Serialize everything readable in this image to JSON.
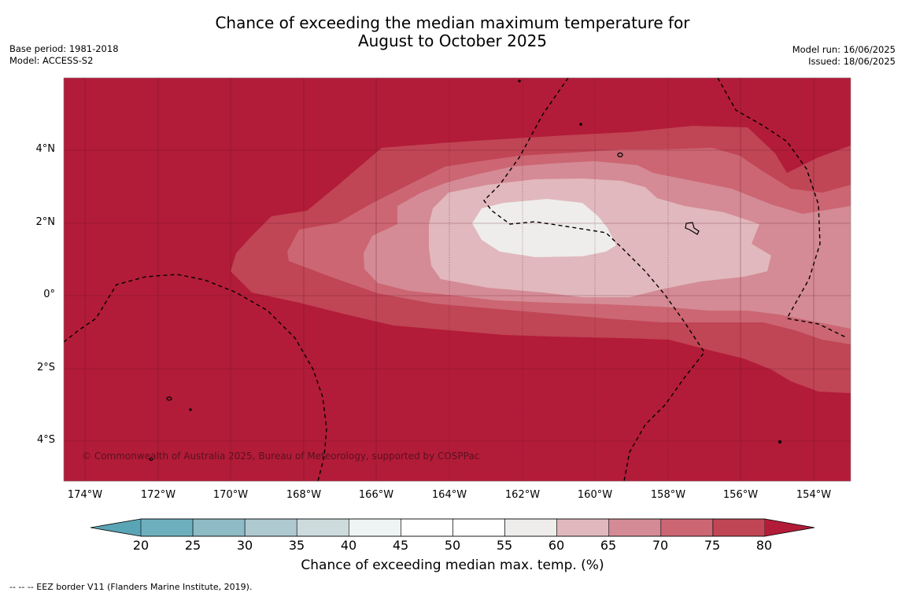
{
  "header": {
    "title_line1": "Chance of exceeding the median maximum temperature for",
    "title_line2": "August to October 2025",
    "base_period": "Base period: 1981-2018",
    "model": "Model: ACCESS-S2",
    "model_run": "Model run: 16/06/2025",
    "issued": "Issued: 18/06/2025"
  },
  "map": {
    "latitude_labels": [
      "4°N",
      "2°N",
      "0°",
      "2°S",
      "4°S"
    ],
    "longitude_labels": [
      "174°W",
      "172°W",
      "170°W",
      "168°W",
      "166°W",
      "164°W",
      "162°W",
      "160°W",
      "158°W",
      "156°W",
      "154°W"
    ],
    "copyright": "© Commonwealth of Australia 2025, Bureau of Meteorology, supported by COSPPac",
    "colors": {
      "background": "#b21c38",
      "band_75_80": "#c04555",
      "band_70_75": "#cc6673",
      "band_65_70": "#d48b95",
      "band_60_65": "#e1b8bd",
      "band_55_60": "#eeedeb",
      "land": "#000000"
    }
  },
  "colorbar": {
    "title": "Chance of exceeding median max. temp. (%)",
    "ticks": [
      "20",
      "25",
      "30",
      "35",
      "40",
      "45",
      "50",
      "55",
      "60",
      "65",
      "70",
      "75",
      "80"
    ],
    "colors": [
      "#5aa5b5",
      "#6eafbe",
      "#8ebbc5",
      "#aec9cf",
      "#cddbdd",
      "#eef3f3",
      "#ffffff",
      "#ffffff",
      "#eeedeb",
      "#e1b8bd",
      "#d48b95",
      "#cc6673",
      "#c04555",
      "#b21c38"
    ]
  },
  "footnote": "--  --  -- EEZ border V11 (Flanders Marine Institute, 2019)."
}
